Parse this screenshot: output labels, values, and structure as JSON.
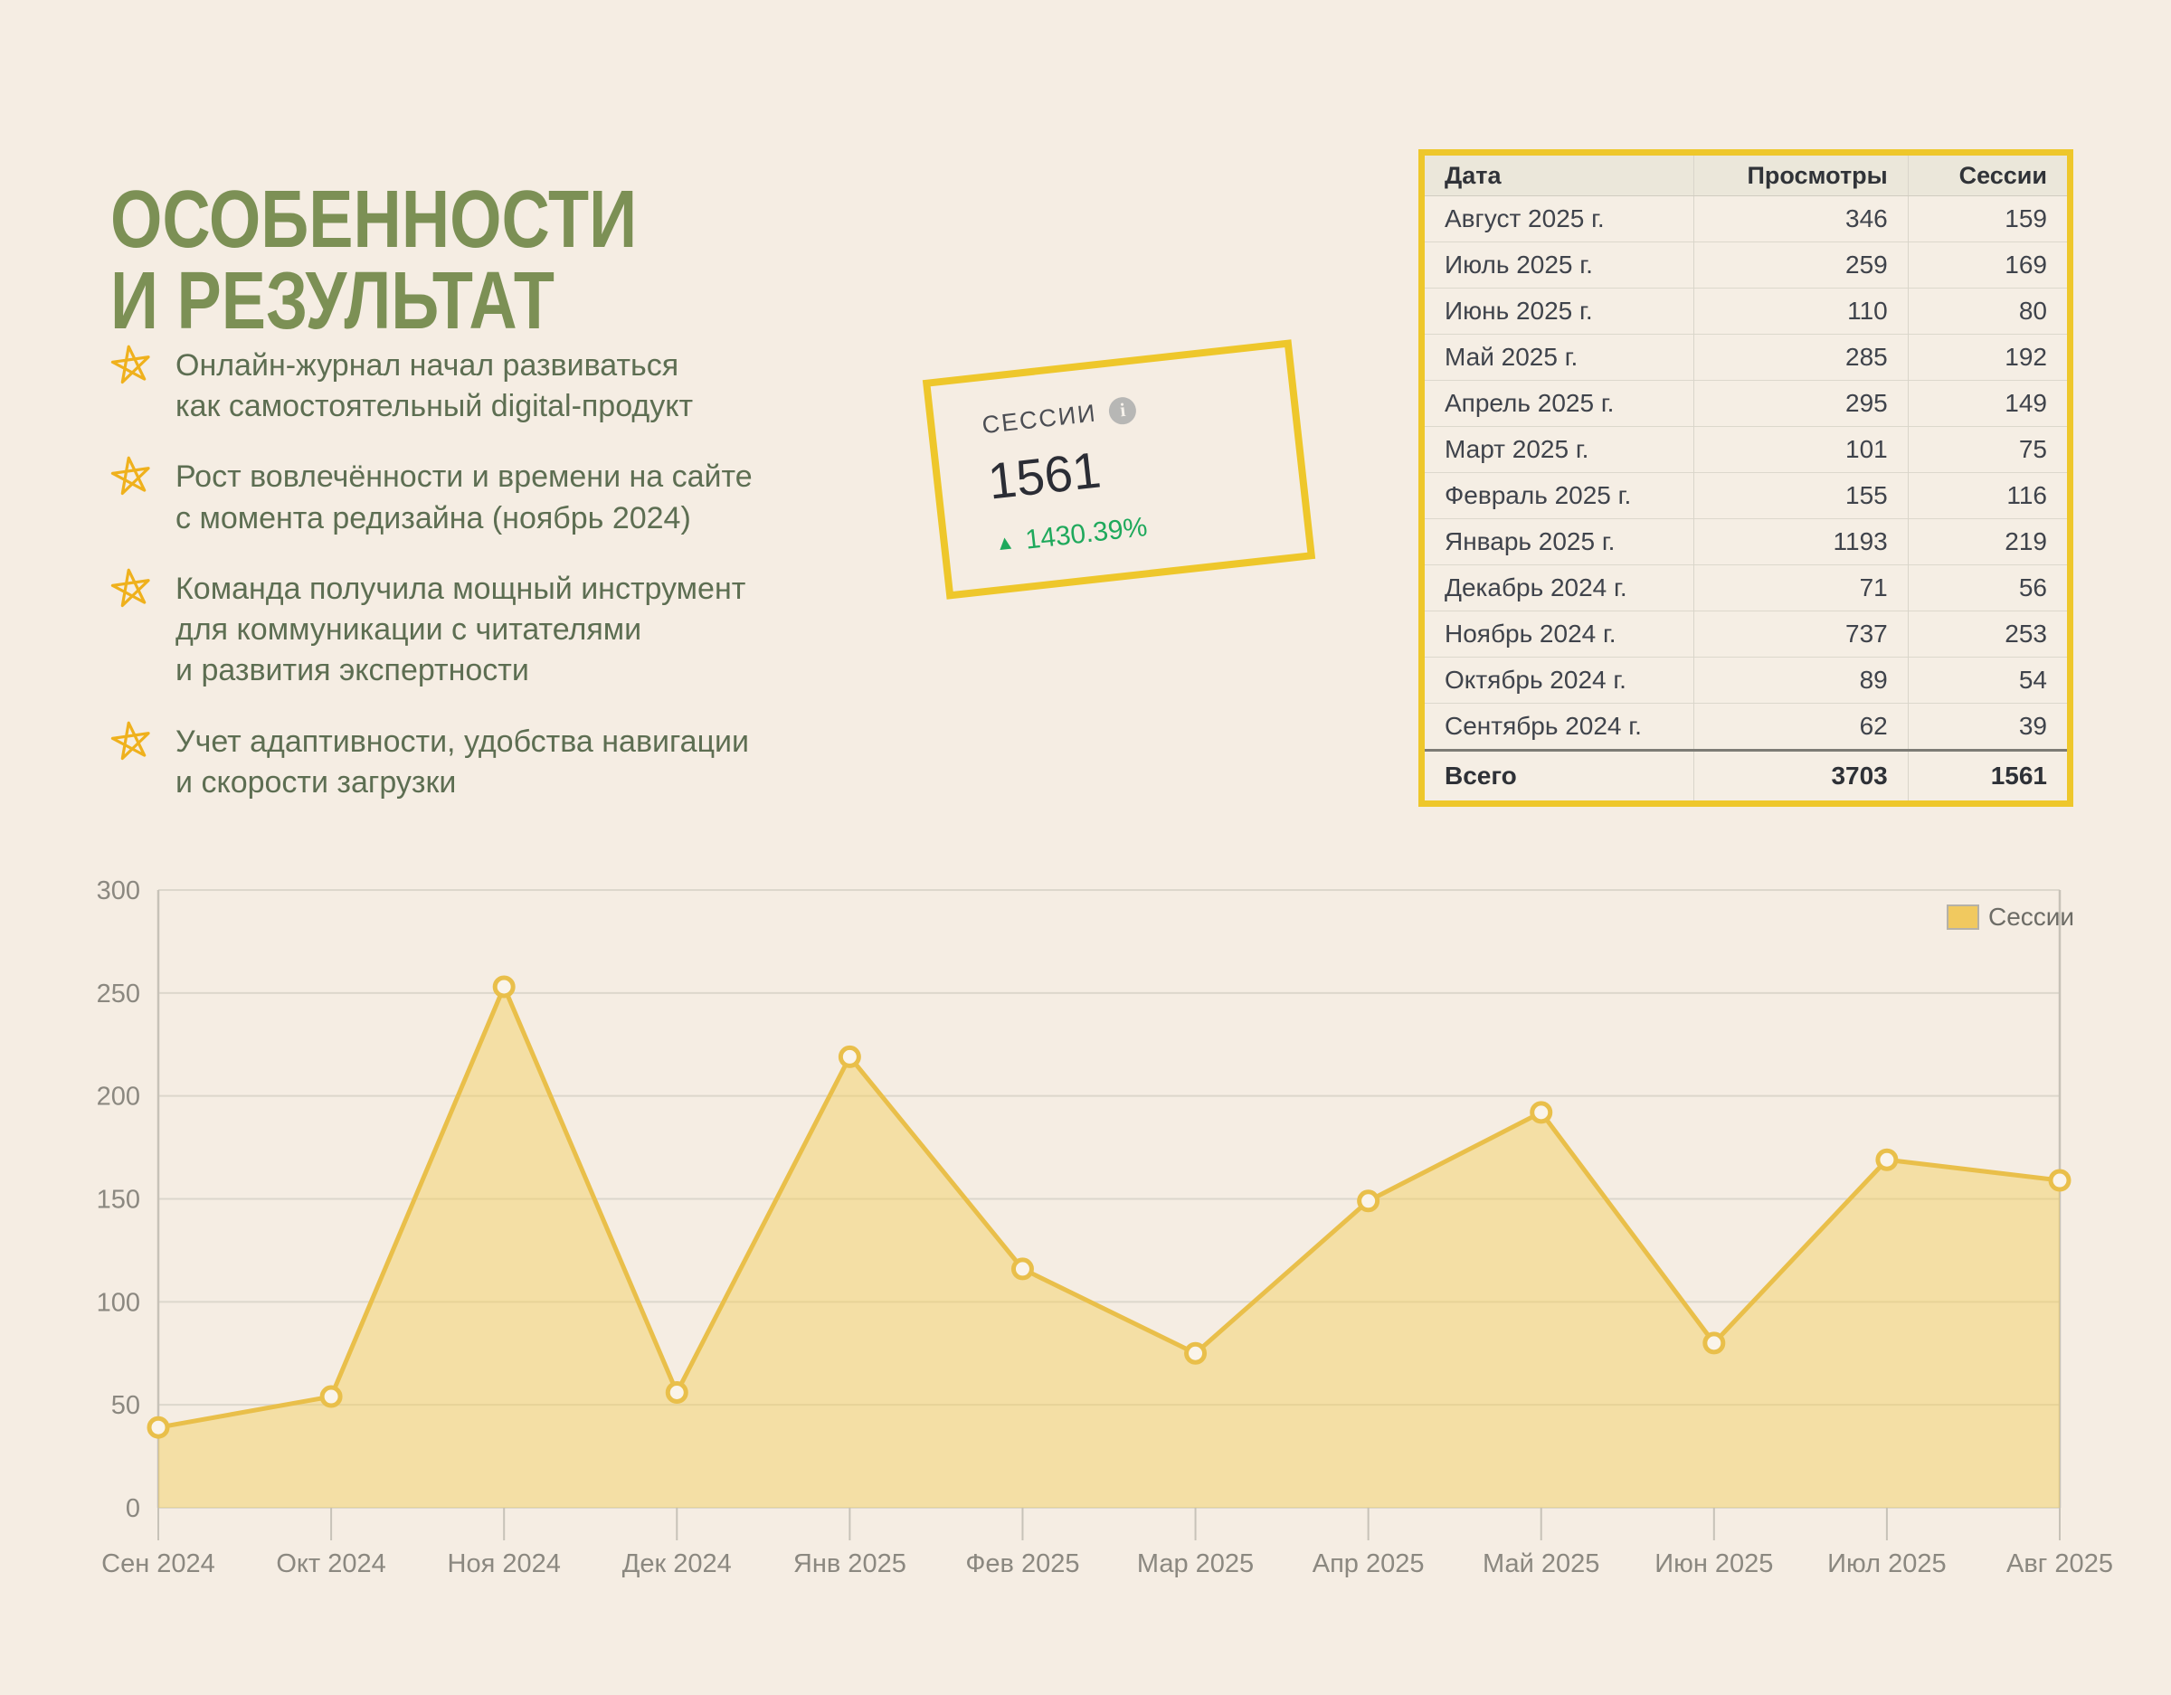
{
  "page": {
    "background": "#f5ede3"
  },
  "title": {
    "line1": "ОСОБЕННОСТИ",
    "line2": "И РЕЗУЛЬТАТ",
    "color": "#7c9055"
  },
  "bullets": [
    {
      "icon": "star-doodle-icon",
      "text": "Онлайн-журнал начал развиваться\nкак самостоятельный digital-продукт"
    },
    {
      "icon": "star-doodle-icon",
      "text": "Рост вовлечённости и времени на сайте\nс момента редизайна (ноябрь 2024)"
    },
    {
      "icon": "star-doodle-icon",
      "text": "Команда получила мощный инструмент\nдля коммуникации с читателями\nи развития экспертности"
    },
    {
      "icon": "star-doodle-icon",
      "text": "Учет адаптивности, удобства навигации\nи скорости загрузки"
    }
  ],
  "metric_card": {
    "label": "СЕССИИ",
    "info_icon": "info-icon",
    "info_glyph": "i",
    "value": "1561",
    "delta_arrow": "▲",
    "delta_value": "1430.39%",
    "delta_color": "#1fa95c",
    "border_color": "#eec72b"
  },
  "table": {
    "columns": [
      "Дата",
      "Просмотры",
      "Сессии"
    ],
    "rows": [
      [
        "Август 2025 г.",
        "346",
        "159"
      ],
      [
        "Июль 2025 г.",
        "259",
        "169"
      ],
      [
        "Июнь 2025 г.",
        "110",
        "80"
      ],
      [
        "Май 2025 г.",
        "285",
        "192"
      ],
      [
        "Апрель 2025 г.",
        "295",
        "149"
      ],
      [
        "Март 2025 г.",
        "101",
        "75"
      ],
      [
        "Февраль 2025 г.",
        "155",
        "116"
      ],
      [
        "Январь 2025 г.",
        "1193",
        "219"
      ],
      [
        "Декабрь 2024 г.",
        "71",
        "56"
      ],
      [
        "Ноябрь 2024 г.",
        "737",
        "253"
      ],
      [
        "Октябрь 2024 г.",
        "89",
        "54"
      ],
      [
        "Сентябрь 2024 г.",
        "62",
        "39"
      ]
    ],
    "total": [
      "Всего",
      "3703",
      "1561"
    ],
    "border_color": "#eec72b"
  },
  "chart_data": {
    "type": "area",
    "x": [
      "Сен 2024",
      "Окт 2024",
      "Ноя 2024",
      "Дек 2024",
      "Янв 2025",
      "Фев 2025",
      "Мар 2025",
      "Апр 2025",
      "Май 2025",
      "Июн 2025",
      "Июл 2025",
      "Авг 2025"
    ],
    "series": [
      {
        "name": "Сессии",
        "values": [
          39,
          54,
          253,
          56,
          219,
          116,
          75,
          149,
          192,
          80,
          169,
          159
        ]
      }
    ],
    "title": "",
    "xlabel": "",
    "ylabel": "",
    "ylim": [
      0,
      300
    ],
    "yticks": [
      0,
      50,
      100,
      150,
      200,
      250,
      300
    ],
    "grid": true,
    "legend_position": "top-right",
    "colors": {
      "line": "#e9bf4a",
      "fill": "rgba(243,206,88,0.45)",
      "marker_fill": "#faf4ea",
      "grid": "#dcd7cc",
      "axis": "#c7c2b8",
      "tick_label": "#8b8880",
      "legend_text": "#6d6c66",
      "legend_swatch": "#f1c95f",
      "legend_swatch_border": "#b5b1a8"
    }
  }
}
